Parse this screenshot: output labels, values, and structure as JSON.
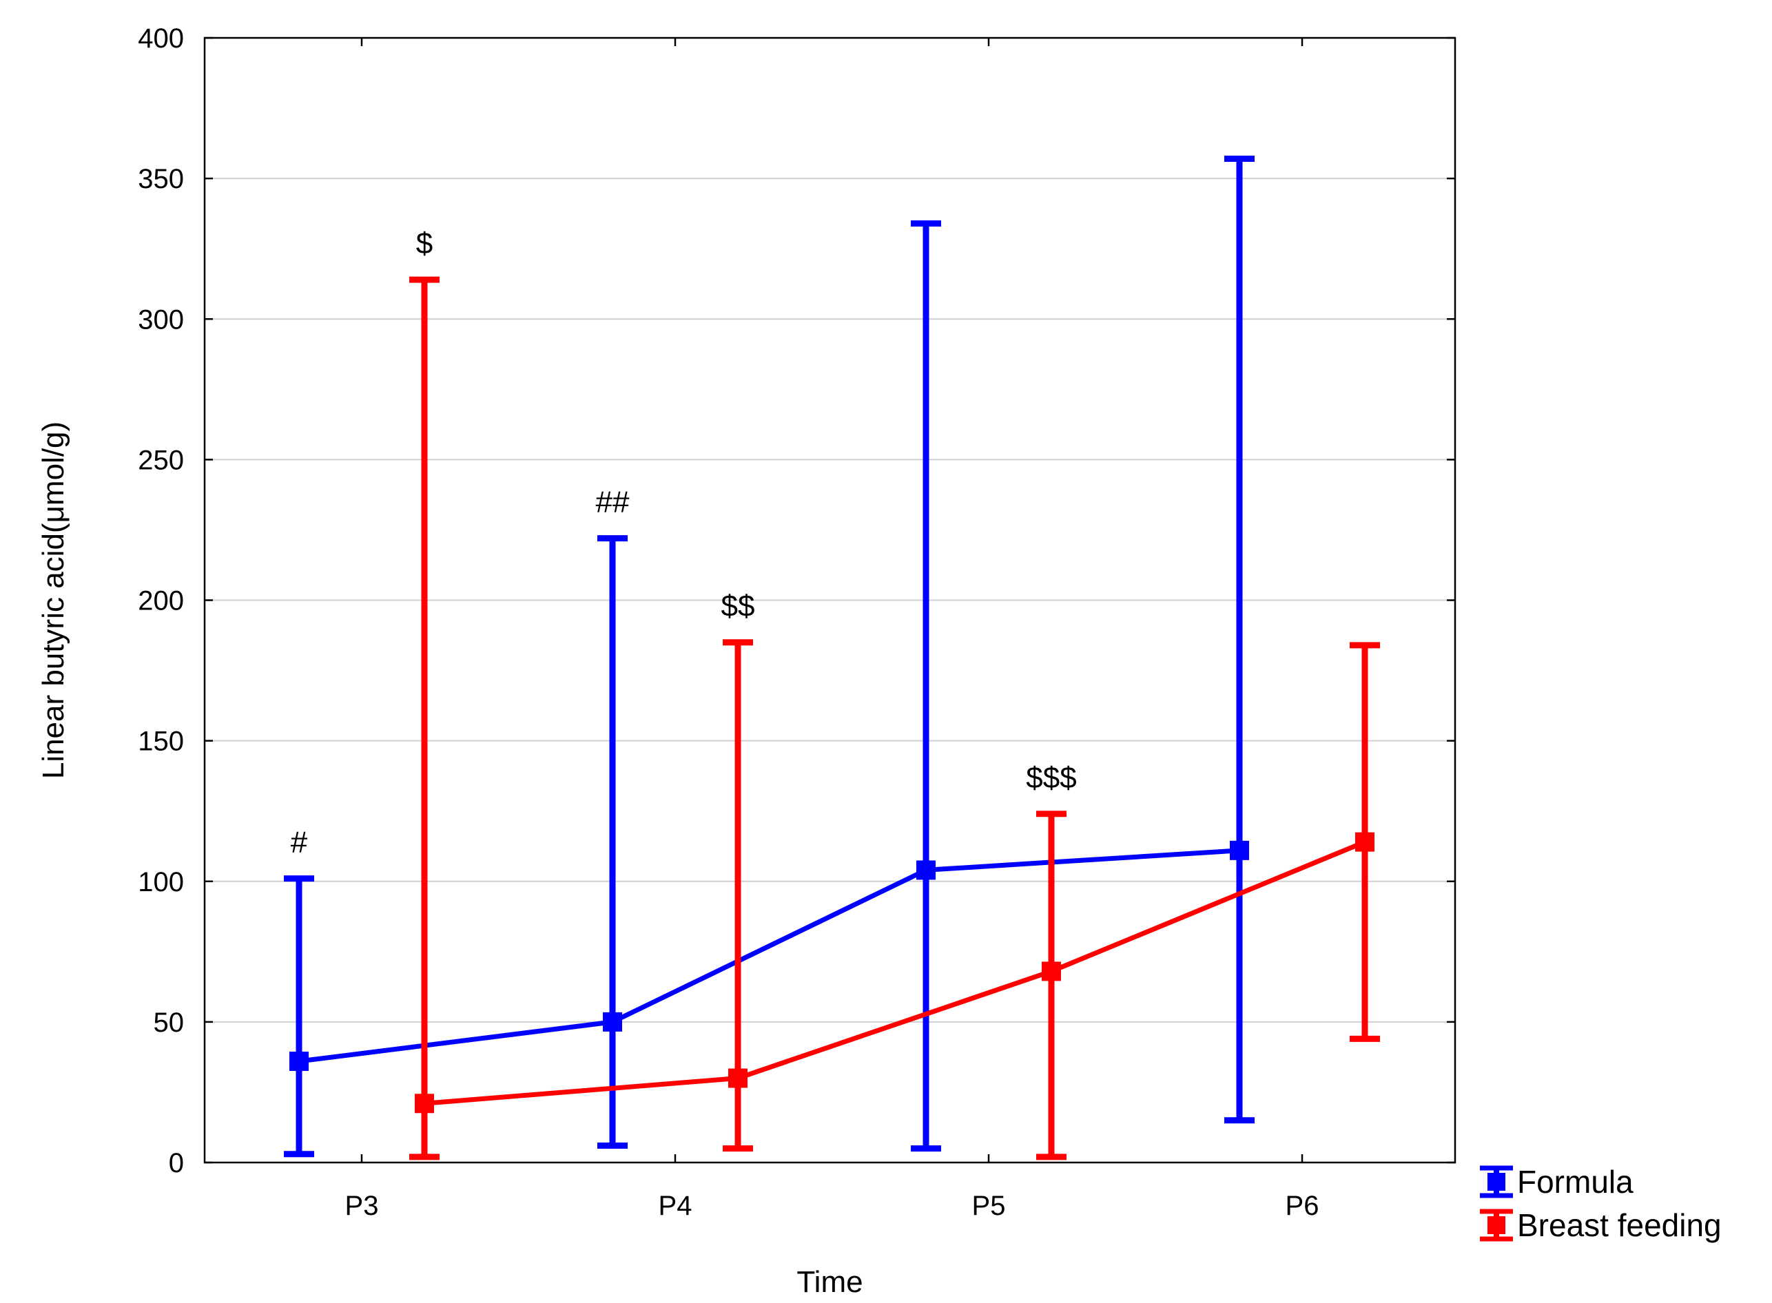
{
  "chart_data": {
    "type": "line",
    "title": "",
    "xlabel": "Time",
    "ylabel": "Linear butyric acid(μmol/g)",
    "categories": [
      "P3",
      "P4",
      "P5",
      "P6"
    ],
    "ylim": [
      0,
      400
    ],
    "yticks": [
      0,
      50,
      100,
      150,
      200,
      250,
      300,
      350,
      400
    ],
    "grid": true,
    "legend_position": "bottom-right outside",
    "series": [
      {
        "name": "Formula",
        "color": "#0000ff",
        "offset": -0.2,
        "values": [
          36,
          50,
          104,
          111
        ],
        "lower": [
          3,
          6,
          5,
          15
        ],
        "upper": [
          101,
          222,
          334,
          357
        ],
        "annotations": [
          "#",
          "##",
          "",
          ""
        ]
      },
      {
        "name": "Breast feeding",
        "color": "#ff0000",
        "offset": 0.2,
        "values": [
          21,
          30,
          68,
          114
        ],
        "lower": [
          2,
          5,
          2,
          44
        ],
        "upper": [
          314,
          185,
          124,
          184
        ],
        "annotations": [
          "$",
          "$$",
          "$$$",
          ""
        ]
      }
    ]
  }
}
